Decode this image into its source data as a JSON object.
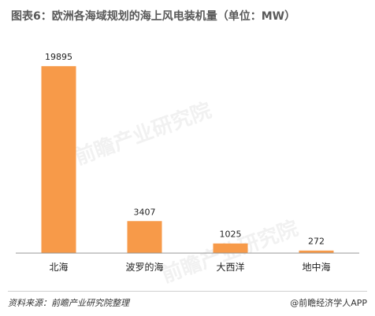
{
  "chart_data": {
    "type": "bar",
    "title": "图表6：欧洲各海域规划的海上风电装机量（单位：MW）",
    "categories": [
      "北海",
      "波罗的海",
      "大西洋",
      "地中海"
    ],
    "values": [
      19895,
      3407,
      1025,
      272
    ],
    "value_labels": [
      "19895",
      "3407",
      "1025",
      "272"
    ],
    "ylim": [
      0,
      21500
    ],
    "grid": false,
    "legend": "none",
    "bar_color": "#F79A49",
    "axis_color": "#999999"
  },
  "footer": {
    "source": "资料来源：前瞻产业研究院整理",
    "brand": "@前瞻经济学人APP"
  },
  "watermark": {
    "text": "前瞻产业研究院"
  }
}
